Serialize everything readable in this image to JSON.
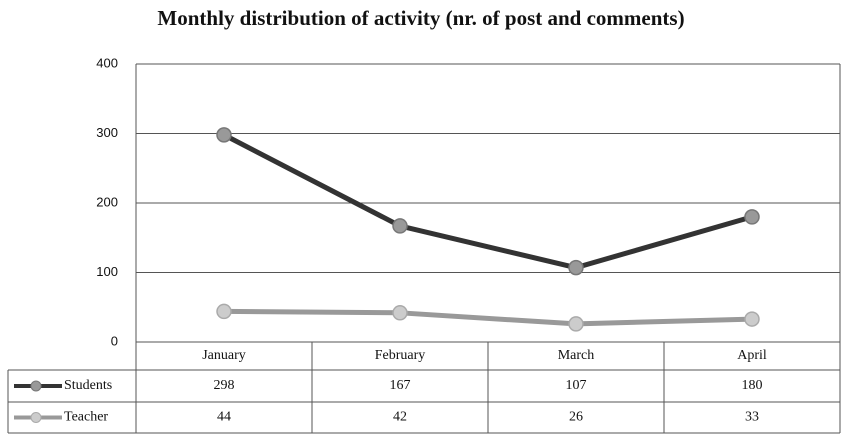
{
  "chart_data": {
    "type": "line",
    "title": "Monthly distribution of activity (nr. of post and comments)",
    "categories": [
      "January",
      "February",
      "March",
      "April"
    ],
    "series": [
      {
        "name": "Students",
        "color": "#333333",
        "marker_color": "#999999",
        "values": [
          298,
          167,
          107,
          180
        ]
      },
      {
        "name": "Teacher",
        "color": "#999999",
        "marker_color": "#cccccc",
        "values": [
          44,
          42,
          26,
          33
        ]
      }
    ],
    "ylim": [
      0,
      400
    ],
    "yticks": [
      0,
      100,
      200,
      300,
      400
    ],
    "grid": true,
    "data_table": true
  }
}
